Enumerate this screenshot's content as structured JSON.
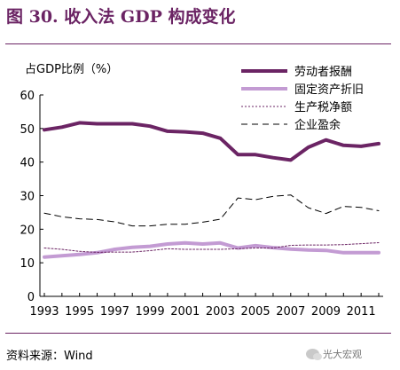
{
  "title": "图 30. 收入法 GDP 构成变化",
  "source": "资料来源：Wind",
  "watermark": "光大宏观",
  "colors": {
    "brand": "#6b2464",
    "labor": "#6b2464",
    "fixed_asset": "#c39bd3",
    "tax": "#6b2464",
    "surplus": "#000000"
  },
  "chart_data": {
    "type": "line",
    "ylabel": "占GDP比例（%）",
    "xlabel": "",
    "ylim": [
      0,
      60
    ],
    "yticks": [
      0,
      10,
      20,
      30,
      40,
      50,
      60
    ],
    "x": [
      1993,
      1994,
      1995,
      1996,
      1997,
      1998,
      1999,
      2000,
      2001,
      2002,
      2003,
      2004,
      2005,
      2006,
      2007,
      2008,
      2009,
      2010,
      2011,
      2012
    ],
    "xticks": [
      "1993",
      "1995",
      "1997",
      "1999",
      "2001",
      "2003",
      "2005",
      "2007",
      "2009",
      "2011"
    ],
    "legend_position": "top-right",
    "grid": false,
    "series": [
      {
        "name": "劳动者报酬",
        "style": "thick-solid",
        "values": [
          49.6,
          50.4,
          51.7,
          51.4,
          51.4,
          51.4,
          50.7,
          49.2,
          49.0,
          48.6,
          47.1,
          42.2,
          42.2,
          41.3,
          40.6,
          44.4,
          46.6,
          45.0,
          44.7,
          45.5
        ]
      },
      {
        "name": "固定资产折旧",
        "style": "thick-solid-light",
        "values": [
          11.7,
          12.1,
          12.5,
          13.0,
          14.0,
          14.6,
          14.9,
          15.6,
          15.9,
          15.6,
          15.9,
          14.4,
          15.1,
          14.5,
          14.1,
          13.8,
          13.7,
          13.0,
          13.0,
          13.0
        ]
      },
      {
        "name": "生产税净额",
        "style": "dotted",
        "values": [
          14.4,
          14.0,
          13.4,
          13.1,
          13.2,
          13.2,
          13.6,
          14.2,
          14.0,
          14.0,
          14.0,
          14.2,
          14.4,
          14.4,
          15.2,
          15.3,
          15.3,
          15.4,
          15.7,
          16.0
        ]
      },
      {
        "name": "企业盈余",
        "style": "dashed",
        "values": [
          24.8,
          23.7,
          23.1,
          22.9,
          22.2,
          21.0,
          21.0,
          21.5,
          21.5,
          22.1,
          23.0,
          29.3,
          28.8,
          29.8,
          30.2,
          26.4,
          24.7,
          26.8,
          26.5,
          25.5
        ]
      }
    ]
  }
}
